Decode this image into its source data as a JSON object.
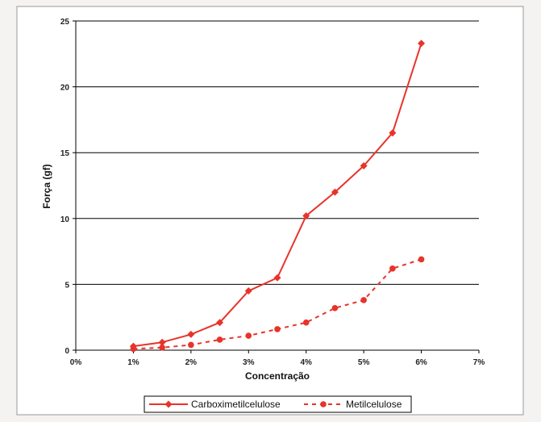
{
  "chart_data": {
    "type": "line",
    "xlabel": "Concentração",
    "ylabel": "Força (gf)",
    "xlim": [
      0,
      7
    ],
    "ylim": [
      0,
      25
    ],
    "x_ticks": [
      0,
      1,
      2,
      3,
      4,
      5,
      6,
      7
    ],
    "x_tick_labels": [
      "0%",
      "1%",
      "2%",
      "3%",
      "4%",
      "5%",
      "6%",
      "7%"
    ],
    "y_ticks": [
      0,
      5,
      10,
      15,
      20,
      25
    ],
    "y_tick_labels": [
      "0",
      "5",
      "10",
      "15",
      "20",
      "25"
    ],
    "grid": "horizontal",
    "legend_position": "bottom",
    "series": [
      {
        "name": "Carboximetilcelulose",
        "color": "#e8332a",
        "marker": "diamond",
        "line_style": "solid",
        "x": [
          1,
          1.5,
          2,
          2.5,
          3,
          3.5,
          4,
          4.5,
          5,
          5.5,
          6
        ],
        "y": [
          0.3,
          0.6,
          1.2,
          2.1,
          4.5,
          5.5,
          10.2,
          12.0,
          14.0,
          16.5,
          23.3
        ]
      },
      {
        "name": "Metilcelulose",
        "color": "#e8332a",
        "marker": "circle",
        "line_style": "dashed",
        "x": [
          1,
          1.5,
          2,
          2.5,
          3,
          3.5,
          4,
          4.5,
          5,
          5.5,
          6
        ],
        "y": [
          0.1,
          0.2,
          0.4,
          0.8,
          1.1,
          1.6,
          2.1,
          3.2,
          3.8,
          6.2,
          6.9
        ]
      }
    ]
  }
}
